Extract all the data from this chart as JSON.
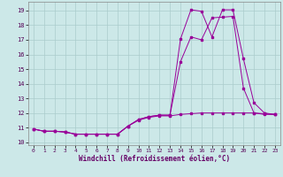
{
  "xlabel": "Windchill (Refroidissement éolien,°C)",
  "background_color": "#cce8e8",
  "grid_color": "#aacccc",
  "line_color": "#990099",
  "xlim": [
    -0.5,
    23.5
  ],
  "ylim": [
    9.8,
    19.6
  ],
  "xticks": [
    0,
    1,
    2,
    3,
    4,
    5,
    6,
    7,
    8,
    9,
    10,
    11,
    12,
    13,
    14,
    15,
    16,
    17,
    18,
    19,
    20,
    21,
    22,
    23
  ],
  "yticks": [
    10,
    11,
    12,
    13,
    14,
    15,
    16,
    17,
    18,
    19
  ],
  "series1_x": [
    0,
    1,
    2,
    3,
    4,
    5,
    6,
    7,
    8,
    9,
    10,
    11,
    12,
    13,
    14,
    15,
    16,
    17,
    18,
    19,
    20,
    21,
    22,
    23
  ],
  "series1_y": [
    10.9,
    10.75,
    10.75,
    10.7,
    10.55,
    10.55,
    10.55,
    10.55,
    10.55,
    11.1,
    11.55,
    11.75,
    11.85,
    11.85,
    17.05,
    19.05,
    18.95,
    17.2,
    19.05,
    19.05,
    15.7,
    12.7,
    12.0,
    11.9
  ],
  "series2_x": [
    0,
    1,
    2,
    3,
    4,
    5,
    6,
    7,
    8,
    9,
    10,
    11,
    12,
    13,
    14,
    15,
    16,
    17,
    18,
    19,
    20,
    21,
    22,
    23
  ],
  "series2_y": [
    10.9,
    10.75,
    10.75,
    10.7,
    10.55,
    10.55,
    10.55,
    10.55,
    10.55,
    11.1,
    11.55,
    11.75,
    11.85,
    11.85,
    15.5,
    17.2,
    17.0,
    18.5,
    18.55,
    18.6,
    13.7,
    12.0,
    11.9,
    11.9
  ],
  "series3_x": [
    0,
    1,
    2,
    3,
    4,
    5,
    6,
    7,
    8,
    9,
    10,
    11,
    12,
    13,
    14,
    15,
    16,
    17,
    18,
    19,
    20,
    21,
    22,
    23
  ],
  "series3_y": [
    10.9,
    10.75,
    10.75,
    10.7,
    10.55,
    10.55,
    10.55,
    10.55,
    10.55,
    11.1,
    11.5,
    11.7,
    11.8,
    11.8,
    11.9,
    11.95,
    12.0,
    12.0,
    12.0,
    12.0,
    12.0,
    12.0,
    11.95,
    11.9
  ]
}
